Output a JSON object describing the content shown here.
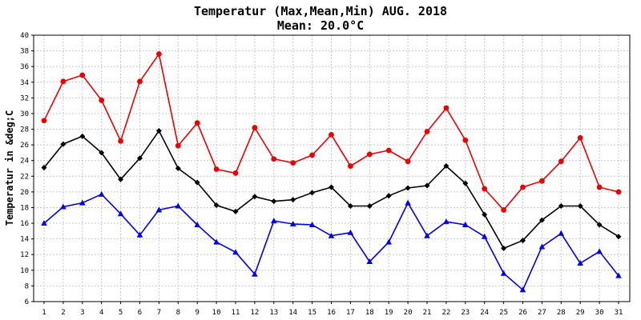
{
  "chart_data": {
    "type": "line",
    "title": "Temperatur (Max,Mean,Min) AUG. 2018",
    "subtitle": "Mean: 20.0°C",
    "ylabel": "Temperatur in &deg;C",
    "xlabel": "",
    "ylim": [
      6,
      40
    ],
    "yticks": [
      6,
      8,
      10,
      12,
      14,
      16,
      18,
      20,
      22,
      24,
      26,
      28,
      30,
      32,
      34,
      36,
      38,
      40
    ],
    "categories": [
      "1",
      "2",
      "3",
      "4",
      "5",
      "6",
      "7",
      "8",
      "9",
      "10",
      "11",
      "12",
      "13",
      "14",
      "15",
      "16",
      "17",
      "18",
      "19",
      "20",
      "21",
      "22",
      "23",
      "24",
      "25",
      "26",
      "27",
      "28",
      "29",
      "30",
      "31"
    ],
    "grid": true,
    "series": [
      {
        "key": "max",
        "color": "#ee0000",
        "marker": "circle",
        "values": [
          29.1,
          34.1,
          34.9,
          31.7,
          26.5,
          34.1,
          37.6,
          25.9,
          28.8,
          22.9,
          22.4,
          28.2,
          24.2,
          23.7,
          24.7,
          27.3,
          23.3,
          24.8,
          25.3,
          23.9,
          27.7,
          30.7,
          26.6,
          20.4,
          17.7,
          20.6,
          21.4,
          23.9,
          26.9,
          20.6,
          20.0
        ]
      },
      {
        "key": "mean",
        "color": "#000000",
        "marker": "diamond",
        "values": [
          23.1,
          26.1,
          27.1,
          25.0,
          21.6,
          24.3,
          27.8,
          23.0,
          21.2,
          18.3,
          17.5,
          19.4,
          18.8,
          19.0,
          19.9,
          20.6,
          18.2,
          18.2,
          19.5,
          20.5,
          20.8,
          23.3,
          21.1,
          17.1,
          12.8,
          13.8,
          16.4,
          18.2,
          18.2,
          15.8,
          14.3
        ]
      },
      {
        "key": "min",
        "color": "#0000ee",
        "marker": "triangle",
        "values": [
          16.0,
          18.1,
          18.6,
          19.7,
          17.2,
          14.5,
          17.7,
          18.2,
          15.8,
          13.6,
          12.3,
          9.5,
          16.3,
          15.9,
          15.8,
          14.4,
          14.8,
          11.1,
          13.6,
          18.6,
          14.4,
          16.2,
          15.8,
          14.3,
          9.6,
          7.5,
          13.0,
          14.7,
          10.9,
          12.4,
          9.3
        ]
      }
    ]
  }
}
